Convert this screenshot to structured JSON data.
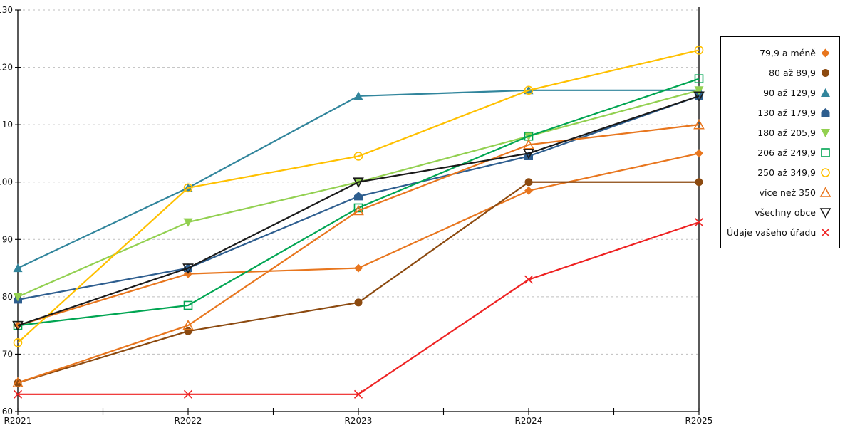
{
  "chart_data": {
    "type": "line",
    "title": "",
    "xlabel": "",
    "ylabel": "",
    "categories": [
      "R2021",
      "R2022",
      "R2023",
      "R2024",
      "R2025"
    ],
    "ylim": [
      60,
      130
    ],
    "y_ticks": [
      60,
      70,
      80,
      90,
      100,
      110,
      120,
      130
    ],
    "grid": "horizontal-dashed",
    "legend_position": "right",
    "series": [
      {
        "name": "79,9 a méně",
        "marker": "diamond-filled",
        "color": "#E8761E",
        "values": [
          75,
          84,
          85,
          98.5,
          105
        ]
      },
      {
        "name": "80 až 89,9",
        "marker": "circle-filled",
        "color": "#8C4A10",
        "values": [
          65,
          74,
          79,
          100,
          100
        ]
      },
      {
        "name": "90 až 129,9",
        "marker": "triangle-up-filled",
        "color": "#31859C",
        "values": [
          85,
          99,
          115,
          116,
          116
        ]
      },
      {
        "name": "130 až 179,9",
        "marker": "pentagon-filled",
        "color": "#2E5E8F",
        "values": [
          79.5,
          85,
          97.5,
          104.5,
          115
        ]
      },
      {
        "name": "180 až 205,9",
        "marker": "triangle-down-filled",
        "color": "#92D050",
        "values": [
          80,
          93,
          100,
          108,
          116
        ]
      },
      {
        "name": "206 až 249,9",
        "marker": "square-open",
        "color": "#00A552",
        "values": [
          75,
          78.5,
          95.5,
          108,
          118
        ]
      },
      {
        "name": "250 až 349,9",
        "marker": "circle-open",
        "color": "#FFC000",
        "values": [
          72,
          99,
          104.5,
          116,
          123
        ]
      },
      {
        "name": "více než 350",
        "marker": "triangle-up-open",
        "color": "#E8761E",
        "values": [
          65,
          75,
          95,
          106.5,
          110
        ]
      },
      {
        "name": "všechny obce",
        "marker": "triangle-down-open",
        "color": "#1A1A1A",
        "values": [
          75,
          85,
          100,
          105,
          115
        ]
      },
      {
        "name": "Údaje vašeho úřadu",
        "marker": "x",
        "color": "#EE2222",
        "values": [
          63,
          63,
          63,
          83,
          93
        ]
      }
    ]
  }
}
